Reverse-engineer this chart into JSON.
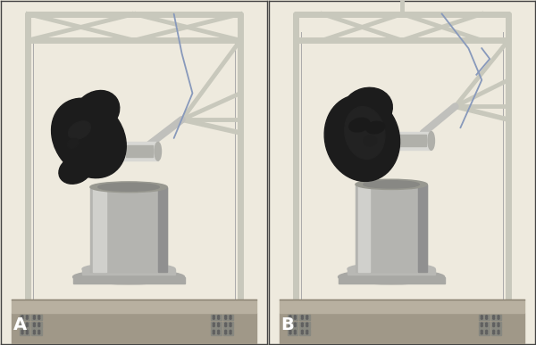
{
  "figure_width": 6.0,
  "figure_height": 3.87,
  "dpi": 100,
  "bg_color": "#eeeade",
  "border_color": "#444444",
  "border_lw": 1.0,
  "frame_color": "#c8c8bc",
  "frame_lw": 5,
  "frame_lw2": 3.5,
  "head_color": "#1c1c1c",
  "head_dark": "#111111",
  "head_mid": "#282828",
  "cylinder_main": "#b4b4b0",
  "cylinder_light": "#d0d0cc",
  "cylinder_dark": "#909090",
  "floor_color": "#a09888",
  "floor_top": "#b8b0a0",
  "block_color": "#888880",
  "block_dark": "#606060",
  "joint_light": "#d8d8d4",
  "joint_mid": "#b0b0aa",
  "joint_dark": "#888884",
  "wire_color": "#8899bb",
  "thin_wire": "#aaaaaa",
  "label_A": "A",
  "label_B": "B",
  "label_fontsize": 14,
  "label_color": "#ffffff",
  "label_fontweight": "bold",
  "wspace": 0.008
}
